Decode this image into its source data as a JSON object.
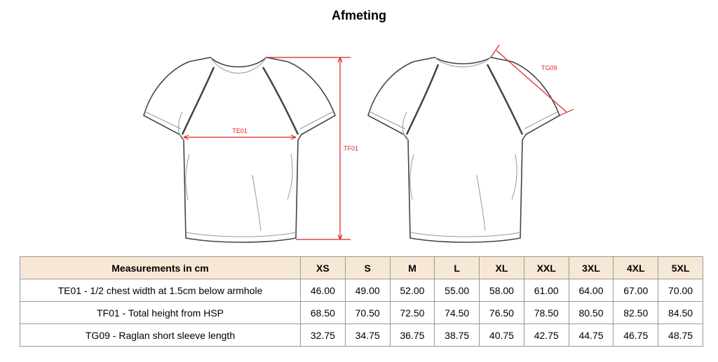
{
  "title": "Afmeting",
  "diagram": {
    "labels": [
      "TE01",
      "TF01",
      "TG09"
    ]
  },
  "table": {
    "header": [
      "Measurements in cm",
      "XS",
      "S",
      "M",
      "L",
      "XL",
      "XXL",
      "3XL",
      "4XL",
      "5XL"
    ],
    "rows": [
      [
        "TE01 - 1/2 chest width at 1.5cm below armhole",
        "46.00",
        "49.00",
        "52.00",
        "55.00",
        "58.00",
        "61.00",
        "64.00",
        "67.00",
        "70.00"
      ],
      [
        "TF01 - Total height from HSP",
        "68.50",
        "70.50",
        "72.50",
        "74.50",
        "76.50",
        "78.50",
        "80.50",
        "82.50",
        "84.50"
      ],
      [
        "TG09 - Raglan short sleeve length",
        "32.75",
        "34.75",
        "36.75",
        "38.75",
        "40.75",
        "42.75",
        "44.75",
        "46.75",
        "48.75"
      ]
    ]
  }
}
